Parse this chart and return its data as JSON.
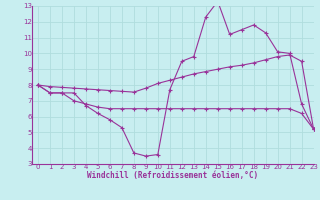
{
  "xlabel": "Windchill (Refroidissement éolien,°C)",
  "bg_color": "#c8eef0",
  "grid_color": "#b0dddd",
  "line_color": "#993399",
  "xlim": [
    -0.5,
    23
  ],
  "ylim": [
    3,
    13
  ],
  "xticks": [
    0,
    1,
    2,
    3,
    4,
    5,
    6,
    7,
    8,
    9,
    10,
    11,
    12,
    13,
    14,
    15,
    16,
    17,
    18,
    19,
    20,
    21,
    22,
    23
  ],
  "yticks": [
    3,
    4,
    5,
    6,
    7,
    8,
    9,
    10,
    11,
    12,
    13
  ],
  "curve1_x": [
    0,
    1,
    2,
    3,
    4,
    5,
    6,
    7,
    8,
    9,
    10,
    11,
    12,
    13,
    14,
    15,
    16,
    17,
    18,
    19,
    20,
    21,
    22,
    23
  ],
  "curve1_y": [
    8.0,
    7.5,
    7.5,
    7.5,
    6.7,
    6.2,
    5.8,
    5.3,
    3.7,
    3.5,
    3.6,
    7.7,
    9.5,
    9.8,
    12.3,
    13.3,
    11.2,
    11.5,
    11.8,
    11.3,
    10.1,
    10.0,
    6.8,
    5.2
  ],
  "curve2_x": [
    0,
    1,
    2,
    3,
    4,
    5,
    6,
    7,
    8,
    9,
    10,
    11,
    12,
    13,
    14,
    15,
    16,
    17,
    18,
    19,
    20,
    21,
    22,
    23
  ],
  "curve2_y": [
    8.0,
    7.5,
    7.5,
    7.0,
    6.8,
    6.6,
    6.5,
    6.5,
    6.5,
    6.5,
    6.5,
    6.5,
    6.5,
    6.5,
    6.5,
    6.5,
    6.5,
    6.5,
    6.5,
    6.5,
    6.5,
    6.5,
    6.2,
    5.2
  ],
  "curve3_x": [
    0,
    1,
    2,
    3,
    4,
    5,
    6,
    7,
    8,
    9,
    10,
    11,
    12,
    13,
    14,
    15,
    16,
    17,
    18,
    19,
    20,
    21,
    22,
    23
  ],
  "curve3_y": [
    8.0,
    7.9,
    7.85,
    7.8,
    7.75,
    7.7,
    7.65,
    7.6,
    7.55,
    7.8,
    8.1,
    8.3,
    8.5,
    8.7,
    8.85,
    9.0,
    9.15,
    9.25,
    9.4,
    9.6,
    9.8,
    9.9,
    9.5,
    5.2
  ]
}
